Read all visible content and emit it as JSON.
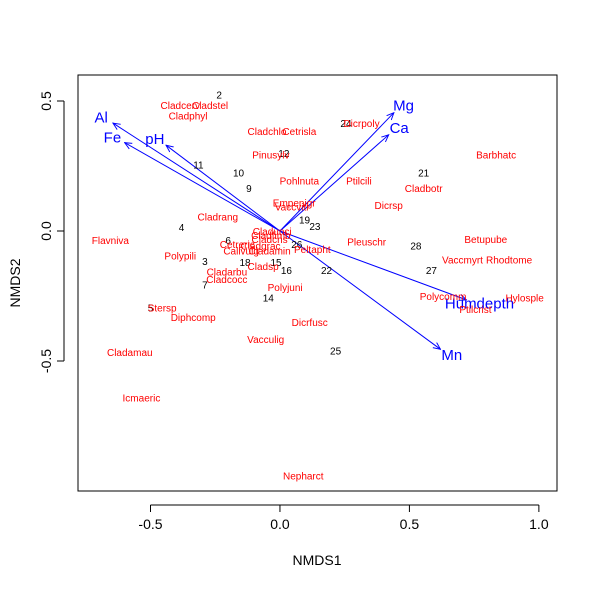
{
  "chart_data": {
    "type": "scatter",
    "title": "",
    "xlabel": "NMDS1",
    "ylabel": "NMDS2",
    "xlim": [
      -0.78,
      1.07
    ],
    "ylim": [
      -1.0,
      0.6
    ],
    "xticks": [
      -0.5,
      0.0,
      0.5,
      1.0
    ],
    "xtick_labels": [
      "-0.5",
      "0.0",
      "0.5",
      "1.0"
    ],
    "yticks": [
      -0.5,
      0.0,
      0.5
    ],
    "ytick_labels": [
      "-0.5",
      "0.0",
      "0.5"
    ],
    "colors": {
      "sites": "#000000",
      "species": "#ff0000",
      "vectors": "#0000ff"
    },
    "sites": [
      {
        "label": "2",
        "x": -0.235,
        "y": 0.525
      },
      {
        "label": "24",
        "x": 0.255,
        "y": 0.415
      },
      {
        "label": "12",
        "x": 0.015,
        "y": 0.3
      },
      {
        "label": "11",
        "x": -0.315,
        "y": 0.255
      },
      {
        "label": "10",
        "x": -0.16,
        "y": 0.225
      },
      {
        "label": "21",
        "x": 0.555,
        "y": 0.225
      },
      {
        "label": "9",
        "x": -0.12,
        "y": 0.165
      },
      {
        "label": "19",
        "x": 0.095,
        "y": 0.045
      },
      {
        "label": "23",
        "x": 0.135,
        "y": 0.02
      },
      {
        "label": "4",
        "x": -0.38,
        "y": 0.015
      },
      {
        "label": "6",
        "x": -0.2,
        "y": -0.035
      },
      {
        "label": "26",
        "x": 0.065,
        "y": -0.05
      },
      {
        "label": "28",
        "x": 0.525,
        "y": -0.055
      },
      {
        "label": "3",
        "x": -0.29,
        "y": -0.115
      },
      {
        "label": "18",
        "x": -0.135,
        "y": -0.12
      },
      {
        "label": "15",
        "x": -0.015,
        "y": -0.12
      },
      {
        "label": "16",
        "x": 0.025,
        "y": -0.15
      },
      {
        "label": "22",
        "x": 0.18,
        "y": -0.15
      },
      {
        "label": "27",
        "x": 0.585,
        "y": -0.15
      },
      {
        "label": "7",
        "x": -0.29,
        "y": -0.205
      },
      {
        "label": "14",
        "x": -0.045,
        "y": -0.255
      },
      {
        "label": "5",
        "x": -0.5,
        "y": -0.295
      },
      {
        "label": "25",
        "x": 0.215,
        "y": -0.46
      }
    ],
    "species": [
      {
        "label": "Cladcerv",
        "x": -0.385,
        "y": 0.485
      },
      {
        "label": "Cladstel",
        "x": -0.27,
        "y": 0.485
      },
      {
        "label": "Cladphyl",
        "x": -0.355,
        "y": 0.445
      },
      {
        "label": "Cladchlo",
        "x": -0.05,
        "y": 0.385
      },
      {
        "label": "Cetrisla",
        "x": 0.075,
        "y": 0.385
      },
      {
        "label": "Dicrpoly",
        "x": 0.315,
        "y": 0.415
      },
      {
        "label": "Pinusylv",
        "x": -0.035,
        "y": 0.295
      },
      {
        "label": "Barbhatc",
        "x": 0.835,
        "y": 0.295
      },
      {
        "label": "Pohlnuta",
        "x": 0.075,
        "y": 0.195
      },
      {
        "label": "Ptilcili",
        "x": 0.305,
        "y": 0.195
      },
      {
        "label": "Cladbotr",
        "x": 0.555,
        "y": 0.165
      },
      {
        "label": "Empenigr",
        "x": 0.055,
        "y": 0.11
      },
      {
        "label": "Vaccviti",
        "x": 0.045,
        "y": 0.095
      },
      {
        "label": "Dicrsp",
        "x": 0.42,
        "y": 0.1
      },
      {
        "label": "Cladrang",
        "x": -0.24,
        "y": 0.055
      },
      {
        "label": "Cladunci",
        "x": -0.03,
        "y": 0.0
      },
      {
        "label": "Cladfimb",
        "x": -0.035,
        "y": -0.015
      },
      {
        "label": "Cladcris",
        "x": -0.04,
        "y": -0.03
      },
      {
        "label": "Cetreric",
        "x": -0.165,
        "y": -0.05
      },
      {
        "label": "Cladgrac",
        "x": -0.075,
        "y": -0.055
      },
      {
        "label": "Peltapht",
        "x": 0.125,
        "y": -0.07
      },
      {
        "label": "Callvulg",
        "x": -0.15,
        "y": -0.075
      },
      {
        "label": "Cladamin",
        "x": -0.04,
        "y": -0.075
      },
      {
        "label": "Flavniva",
        "x": -0.655,
        "y": -0.035
      },
      {
        "label": "Pleuschr",
        "x": 0.335,
        "y": -0.04
      },
      {
        "label": "Betupube",
        "x": 0.795,
        "y": -0.03
      },
      {
        "label": "Polypili",
        "x": -0.385,
        "y": -0.095
      },
      {
        "label": "Vaccmyrt",
        "x": 0.705,
        "y": -0.11
      },
      {
        "label": "Rhodtome",
        "x": 0.885,
        "y": -0.11
      },
      {
        "label": "Cladarbu",
        "x": -0.205,
        "y": -0.155
      },
      {
        "label": "Cladsp",
        "x": -0.065,
        "y": -0.135
      },
      {
        "label": "Cladcocc",
        "x": -0.205,
        "y": -0.185
      },
      {
        "label": "Polyjuni",
        "x": 0.02,
        "y": -0.215
      },
      {
        "label": "Polycomm",
        "x": 0.63,
        "y": -0.25
      },
      {
        "label": "Hylosple",
        "x": 0.945,
        "y": -0.255
      },
      {
        "label": "Stersp",
        "x": -0.455,
        "y": -0.295
      },
      {
        "label": "Ptilcrist",
        "x": 0.755,
        "y": -0.3
      },
      {
        "label": "Diphcomp",
        "x": -0.335,
        "y": -0.33
      },
      {
        "label": "Dicrfusc",
        "x": 0.115,
        "y": -0.35
      },
      {
        "label": "Vacculig",
        "x": -0.055,
        "y": -0.415
      },
      {
        "label": "Cladamau",
        "x": -0.58,
        "y": -0.465
      },
      {
        "label": "Icmaeric",
        "x": -0.535,
        "y": -0.64
      },
      {
        "label": "Nepharct",
        "x": 0.09,
        "y": -0.94
      }
    ],
    "vectors": [
      {
        "label": "Al",
        "x": -0.645,
        "y": 0.415
      },
      {
        "label": "Fe",
        "x": -0.6,
        "y": 0.34
      },
      {
        "label": "pH",
        "x": -0.44,
        "y": 0.33
      },
      {
        "label": "Mg",
        "x": 0.44,
        "y": 0.455
      },
      {
        "label": "Ca",
        "x": 0.42,
        "y": 0.37
      },
      {
        "label": "Humdepth",
        "x": 0.72,
        "y": -0.265
      },
      {
        "label": "Mn",
        "x": 0.62,
        "y": -0.455
      }
    ]
  }
}
